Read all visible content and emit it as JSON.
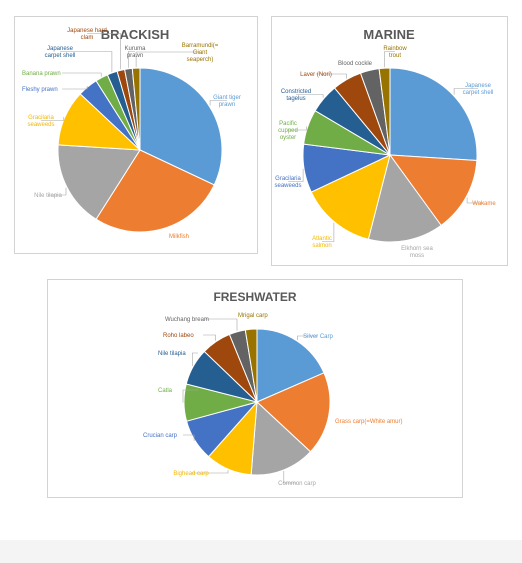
{
  "charts": [
    {
      "id": "brackish",
      "chart_data": {
        "type": "pie",
        "title": "BRACKISH",
        "categories": [
          "Giant tiger prawn",
          "Milkfish",
          "Nile tilapia",
          "Gracilaria seaweeds",
          "Fleshy prawn",
          "Banana prawn",
          "Japanese carpet shell",
          "Japanese hard clam",
          "Kuruma prawn",
          "Barramundi(=Giant seaperch)"
        ],
        "values": [
          32.0,
          27.0,
          17.0,
          11.0,
          4.0,
          2.5,
          2.0,
          1.5,
          1.5,
          1.5
        ],
        "labels_display": [
          [
            "Giant tiger",
            "prawn"
          ],
          [
            "Milkfish"
          ],
          [
            "Nile tilapia"
          ],
          [
            "Gracilaria",
            "seaweeds"
          ],
          [
            "Fleshy prawn"
          ],
          [
            "Banana prawn"
          ],
          [
            "Japanese",
            "carpet shell"
          ],
          [
            "Japanese hard",
            "clam"
          ],
          [
            "Kuruma",
            "prawn"
          ],
          [
            "Barramundi(=",
            "Giant",
            "seaperch)"
          ]
        ]
      }
    },
    {
      "id": "marine",
      "chart_data": {
        "type": "pie",
        "title": "MARINE",
        "categories": [
          "Japanese carpet shell",
          "Wakame",
          "Elkhorn sea moss",
          "Atlantic salmon",
          "Gracilaria seaweeds",
          "Pacific cupped oyster",
          "Constricted tagelus",
          "Laver (Nori)",
          "Blood cockle",
          "Rainbow trout"
        ],
        "values": [
          26.0,
          14.0,
          14.0,
          14.0,
          9.0,
          6.5,
          5.5,
          5.5,
          3.5,
          2.0
        ],
        "labels_display": [
          [
            "Japanese",
            "carpet shell"
          ],
          [
            "Wakame"
          ],
          [
            "Elkhorn sea",
            "moss"
          ],
          [
            "Atlantic",
            "salmon"
          ],
          [
            "Gracilaria",
            "seaweeds"
          ],
          [
            "Pacific",
            "cupped",
            "oyster"
          ],
          [
            "Constricted",
            "tagelus"
          ],
          [
            "Laver (Nori)"
          ],
          [
            "Blood cockle"
          ],
          [
            "Rainbow",
            "trout"
          ]
        ]
      }
    },
    {
      "id": "freshwater",
      "chart_data": {
        "type": "pie",
        "title": "FRESHWATER",
        "categories": [
          "Silver Carp",
          "Grass carp(=White amur)",
          "Common carp",
          "Bighead carp",
          "Crucian carp",
          "Catla",
          "Nile tilapia",
          "Roho labeo",
          "Wuchang bream",
          "Mrigal carp"
        ],
        "values": [
          18.0,
          18.0,
          14.0,
          10.0,
          9.0,
          8.0,
          8.0,
          6.5,
          3.5,
          2.5
        ],
        "labels_display": [
          [
            "Silver Carp"
          ],
          [
            "Grass carp(=White amur)"
          ],
          [
            "Common carp"
          ],
          [
            "Bighead carp"
          ],
          [
            "Crucian carp"
          ],
          [
            "Catla"
          ],
          [
            "Nile tilapia"
          ],
          [
            "Roho labeo"
          ],
          [
            "Wuchang bream"
          ],
          [
            "Mrigal carp"
          ]
        ]
      }
    }
  ],
  "colors": {
    "slices": [
      "#5b9bd5",
      "#ed7d31",
      "#a5a5a5",
      "#ffc000",
      "#4472c4",
      "#70ad47",
      "#255e91",
      "#9e480e",
      "#636363",
      "#997300"
    ],
    "labels": [
      "#5b9bd5",
      "#ed7d31",
      "#a5a5a5",
      "#f2b800",
      "#4472c4",
      "#70ad47",
      "#255e91",
      "#9e480e",
      "#636363",
      "#997300"
    ],
    "title": "#595959",
    "leader": "#a6a6a6"
  }
}
